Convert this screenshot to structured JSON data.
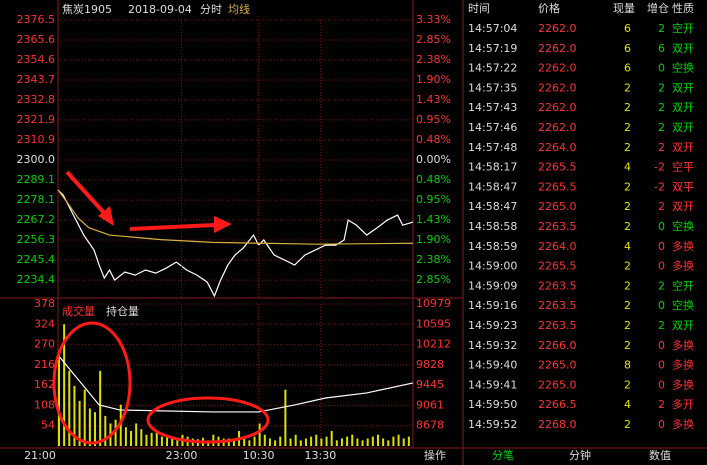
{
  "chart_data": [
    {
      "type": "line",
      "title": "焦炭1905",
      "subtitle": "2018-09-04",
      "annotations": [
        "分时"
      ],
      "grid": true,
      "xlim": [
        0,
        345
      ],
      "ylim": [
        2224.6,
        2376.5
      ],
      "y2lim": [
        -3.28,
        3.33
      ],
      "yticks": [
        2376.5,
        2365.6,
        2354.6,
        2343.7,
        2332.8,
        2321.9,
        2310.9,
        {
          "value": 2300,
          "label": "2300.0"
        },
        2289.1,
        2278.1,
        2267.2,
        2256.3,
        2245.4,
        2234.4
      ],
      "y2ticks": [
        {
          "value": 3.33,
          "label": "3.33%"
        },
        {
          "value": 2.85,
          "label": "2.85%"
        },
        {
          "value": 2.38,
          "label": "2.38%"
        },
        {
          "value": 1.9,
          "label": "1.90%"
        },
        {
          "value": 1.43,
          "label": "1.43%"
        },
        {
          "value": 0.95,
          "label": "0.95%"
        },
        {
          "value": 0.48,
          "label": "0.48%"
        },
        {
          "value": 0,
          "label": "0.00%"
        },
        {
          "value": -0.48,
          "label": "0.48%"
        },
        {
          "value": -0.95,
          "label": "0.95%"
        },
        {
          "value": -1.43,
          "label": "1.43%"
        },
        {
          "value": -1.9,
          "label": "1.90%"
        },
        {
          "value": -2.38,
          "label": "2.38%"
        },
        {
          "value": -2.85,
          "label": "2.85%"
        }
      ],
      "series": [
        {
          "color": "#ffffff",
          "x": [
            0,
            5,
            15,
            25,
            35,
            40,
            45,
            50,
            55,
            65,
            75,
            85,
            95,
            105,
            115,
            125,
            135,
            145,
            152,
            158,
            165,
            172,
            180,
            190,
            195,
            200,
            210,
            220,
            230,
            240,
            250,
            260,
            270,
            278,
            282,
            290,
            300,
            310,
            320,
            330,
            335,
            345
          ],
          "values": [
            2283.6,
            2280.9,
            2269.9,
            2259.0,
            2250.8,
            2242.6,
            2235.5,
            2239.9,
            2234.4,
            2238.8,
            2237.1,
            2239.9,
            2238.2,
            2240.9,
            2244.2,
            2239.9,
            2237.1,
            2233.3,
            2225.7,
            2234.4,
            2242.6,
            2248.1,
            2251.9,
            2259.0,
            2253.5,
            2256.3,
            2248.1,
            2245.4,
            2242.6,
            2248.1,
            2250.8,
            2253.5,
            2253.5,
            2256.3,
            2267.2,
            2264.4,
            2259.0,
            2262.9,
            2267.2,
            2269.9,
            2264.4,
            2266.1
          ]
        },
        {
          "name": "均线",
          "color": "#d8b040",
          "x": [
            0,
            10,
            20,
            30,
            50,
            100,
            150,
            200,
            250,
            345
          ],
          "values": [
            2283.6,
            2276,
            2268,
            2263,
            2259,
            2256.5,
            2255,
            2254.5,
            2254,
            2254.5
          ]
        }
      ]
    },
    {
      "type": "bar",
      "grid": true,
      "xlim": [
        0,
        345
      ],
      "ylim": [
        0,
        378
      ],
      "y2lim": [
        8294,
        10979
      ],
      "yticks": [
        378,
        324,
        270,
        216,
        162,
        108,
        54
      ],
      "y2ticks": [
        10979,
        10595,
        10212,
        9828,
        9445,
        9061,
        8678
      ],
      "xticks": [
        {
          "value": 0,
          "label": "21:00"
        },
        {
          "value": 120,
          "label": "23:00"
        },
        {
          "value": 195,
          "label": "10:30"
        },
        {
          "value": 255,
          "label": "13:30"
        }
      ],
      "series": [
        {
          "name": "成交量",
          "type": "bar",
          "color": "#e0e000",
          "x": [
            0,
            5,
            10,
            15,
            20,
            25,
            30,
            35,
            40,
            45,
            50,
            55,
            60,
            65,
            70,
            75,
            80,
            85,
            90,
            95,
            100,
            105,
            110,
            115,
            120,
            125,
            130,
            135,
            140,
            145,
            150,
            155,
            160,
            165,
            170,
            175,
            180,
            185,
            190,
            195,
            200,
            205,
            210,
            215,
            220,
            225,
            230,
            235,
            240,
            245,
            250,
            255,
            260,
            265,
            270,
            275,
            280,
            285,
            290,
            295,
            300,
            305,
            310,
            315,
            320,
            325,
            330,
            335,
            340
          ],
          "values": [
            250,
            324,
            200,
            160,
            120,
            150,
            100,
            90,
            200,
            80,
            60,
            70,
            110,
            50,
            40,
            60,
            45,
            30,
            35,
            40,
            25,
            30,
            20,
            15,
            30,
            25,
            20,
            18,
            22,
            15,
            30,
            25,
            20,
            20,
            15,
            40,
            20,
            15,
            25,
            60,
            30,
            20,
            15,
            25,
            150,
            20,
            30,
            15,
            20,
            25,
            30,
            20,
            25,
            40,
            15,
            20,
            25,
            30,
            20,
            15,
            20,
            25,
            30,
            20,
            15,
            25,
            30,
            20,
            25
          ]
        },
        {
          "name": "持仓量",
          "type": "line",
          "axis": "y2",
          "color": "#ffffff",
          "x": [
            0,
            20,
            40,
            60,
            150,
            195,
            230,
            260,
            300,
            345
          ],
          "values": [
            10015,
            9543,
            9070,
            8976,
            8938,
            8938,
            9070,
            9202,
            9297,
            9486
          ]
        }
      ]
    }
  ],
  "table": {
    "headers": [
      "时间",
      "价格",
      "现量",
      "增仓",
      "性质"
    ],
    "rows": [
      {
        "cells": [
          "14:57:04",
          "2262.0",
          "6",
          "2",
          "空开"
        ],
        "color": "#00d000"
      },
      {
        "cells": [
          "14:57:19",
          "2262.0",
          "6",
          "6",
          "双开"
        ],
        "color": "#00d000"
      },
      {
        "cells": [
          "14:57:22",
          "2262.0",
          "6",
          "0",
          "空换"
        ],
        "color": "#00d000"
      },
      {
        "cells": [
          "14:57:35",
          "2262.0",
          "2",
          "2",
          "双开"
        ],
        "color": "#00d000"
      },
      {
        "cells": [
          "14:57:43",
          "2262.0",
          "2",
          "2",
          "双开"
        ],
        "color": "#00d000"
      },
      {
        "cells": [
          "14:57:46",
          "2262.0",
          "2",
          "2",
          "双开"
        ],
        "color": "#00d000"
      },
      {
        "cells": [
          "14:57:48",
          "2264.0",
          "2",
          "2",
          "双开"
        ],
        "color": "#ff3030"
      },
      {
        "cells": [
          "14:58:17",
          "2265.5",
          "4",
          "-2",
          "空平"
        ],
        "color": "#ff3030"
      },
      {
        "cells": [
          "14:58:47",
          "2265.5",
          "2",
          "-2",
          "双平"
        ],
        "color": "#ff3030"
      },
      {
        "cells": [
          "14:58:47",
          "2265.0",
          "2",
          "2",
          "双开"
        ],
        "color": "#ff3030"
      },
      {
        "cells": [
          "14:58:58",
          "2263.5",
          "2",
          "0",
          "空换"
        ],
        "color": "#00d000"
      },
      {
        "cells": [
          "14:58:59",
          "2264.0",
          "4",
          "0",
          "多换"
        ],
        "color": "#ff3030"
      },
      {
        "cells": [
          "14:59:00",
          "2265.5",
          "2",
          "0",
          "多换"
        ],
        "color": "#ff3030"
      },
      {
        "cells": [
          "14:59:09",
          "2263.5",
          "2",
          "2",
          "空开"
        ],
        "color": "#00d000"
      },
      {
        "cells": [
          "14:59:16",
          "2263.5",
          "2",
          "0",
          "空换"
        ],
        "color": "#00d000"
      },
      {
        "cells": [
          "14:59:23",
          "2263.5",
          "2",
          "2",
          "双开"
        ],
        "color": "#00d000"
      },
      {
        "cells": [
          "14:59:32",
          "2266.0",
          "2",
          "0",
          "多换"
        ],
        "color": "#ff3030"
      },
      {
        "cells": [
          "14:59:40",
          "2265.0",
          "8",
          "0",
          "多换"
        ],
        "color": "#ff3030"
      },
      {
        "cells": [
          "14:59:41",
          "2265.0",
          "2",
          "0",
          "多换"
        ],
        "color": "#ff3030"
      },
      {
        "cells": [
          "14:59:50",
          "2266.5",
          "4",
          "2",
          "多开"
        ],
        "color": "#ff3030"
      },
      {
        "cells": [
          "14:59:52",
          "2268.0",
          "2",
          "0",
          "多换"
        ],
        "color": "#ff3030"
      }
    ]
  },
  "tabs": [
    "操作",
    "分笔",
    "分钟",
    "数值"
  ]
}
